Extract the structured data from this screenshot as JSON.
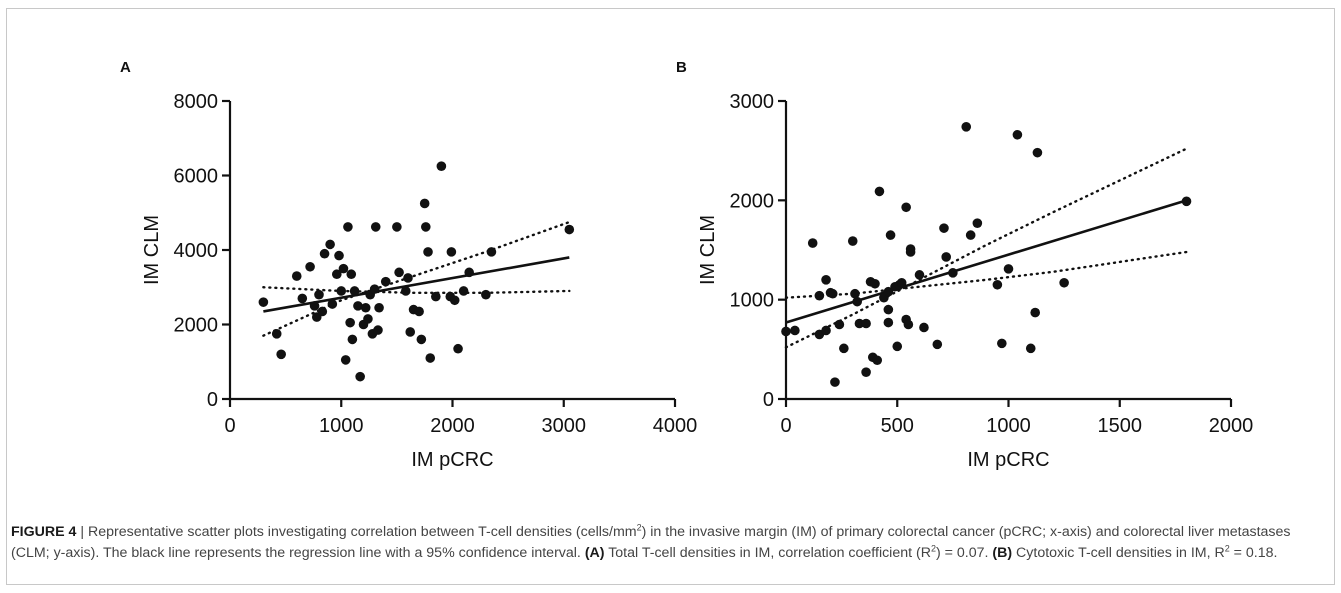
{
  "figure": {
    "caption": {
      "label": "FIGURE 4",
      "sep": " | ",
      "part1": "Representative scatter plots investigating correlation between T-cell densities (cells/mm",
      "sup1": "2",
      "part2": ") in the invasive margin (IM) of primary colorectal cancer (pCRC; x-axis) and colorectal liver metastases (CLM; y-axis). The black line represents the regression line with a 95% confidence interval. ",
      "ref_a": "(A)",
      "part3": " Total T-cell densities in IM, correlation coefficient (R",
      "sup2": "2",
      "part4": ") = 0.07. ",
      "ref_b": "(B)",
      "part5": " Cytotoxic T-cell densities in IM, R",
      "sup3": "2",
      "part6": " = 0.18."
    }
  },
  "chart_data": [
    {
      "type": "scatter",
      "panel_label": "A",
      "xlabel": "IM pCRC",
      "ylabel": "IM CLM",
      "xlim": [
        0,
        4000
      ],
      "ylim": [
        0,
        8000
      ],
      "xticks": [
        0,
        1000,
        2000,
        3000,
        4000
      ],
      "yticks": [
        0,
        2000,
        4000,
        6000,
        8000
      ],
      "grid": false,
      "regression": {
        "x": [
          300,
          3050
        ],
        "y": [
          2350,
          3800
        ]
      },
      "ci_upper": {
        "x": [
          300,
          1000,
          1650,
          2300,
          3050
        ],
        "y": [
          1700,
          2650,
          3300,
          3950,
          4750
        ]
      },
      "ci_lower": {
        "x": [
          300,
          1000,
          1650,
          2300,
          3050
        ],
        "y": [
          3000,
          2900,
          2850,
          2850,
          2900
        ]
      },
      "points": [
        [
          300,
          2600
        ],
        [
          420,
          1750
        ],
        [
          460,
          1200
        ],
        [
          600,
          3300
        ],
        [
          650,
          2700
        ],
        [
          720,
          3550
        ],
        [
          760,
          2500
        ],
        [
          780,
          2200
        ],
        [
          800,
          2800
        ],
        [
          830,
          2350
        ],
        [
          850,
          3900
        ],
        [
          900,
          4150
        ],
        [
          920,
          2550
        ],
        [
          960,
          3350
        ],
        [
          980,
          3850
        ],
        [
          1000,
          2900
        ],
        [
          1020,
          3500
        ],
        [
          1040,
          1050
        ],
        [
          1060,
          4620
        ],
        [
          1080,
          2050
        ],
        [
          1090,
          3350
        ],
        [
          1100,
          1600
        ],
        [
          1120,
          2900
        ],
        [
          1150,
          2500
        ],
        [
          1170,
          600
        ],
        [
          1200,
          2000
        ],
        [
          1220,
          2450
        ],
        [
          1240,
          2150
        ],
        [
          1260,
          2800
        ],
        [
          1280,
          1750
        ],
        [
          1300,
          2950
        ],
        [
          1310,
          4620
        ],
        [
          1330,
          1850
        ],
        [
          1340,
          2450
        ],
        [
          1400,
          3150
        ],
        [
          1500,
          4620
        ],
        [
          1520,
          3400
        ],
        [
          1580,
          2900
        ],
        [
          1600,
          3250
        ],
        [
          1620,
          1800
        ],
        [
          1650,
          2400
        ],
        [
          1700,
          2350
        ],
        [
          1720,
          1600
        ],
        [
          1750,
          5250
        ],
        [
          1760,
          4620
        ],
        [
          1780,
          3950
        ],
        [
          1800,
          1100
        ],
        [
          1850,
          2750
        ],
        [
          1900,
          6250
        ],
        [
          1980,
          2750
        ],
        [
          1990,
          3950
        ],
        [
          2020,
          2650
        ],
        [
          2050,
          1350
        ],
        [
          2100,
          2900
        ],
        [
          2150,
          3400
        ],
        [
          2300,
          2800
        ],
        [
          2350,
          3950
        ],
        [
          3050,
          4550
        ]
      ]
    },
    {
      "type": "scatter",
      "panel_label": "B",
      "xlabel": "IM pCRC",
      "ylabel": "IM CLM",
      "xlim": [
        0,
        2000
      ],
      "ylim": [
        0,
        3000
      ],
      "xticks": [
        0,
        500,
        1000,
        1500,
        2000
      ],
      "yticks": [
        0,
        1000,
        2000,
        3000
      ],
      "grid": false,
      "regression": {
        "x": [
          0,
          1800
        ],
        "y": [
          770,
          2000
        ]
      },
      "ci_upper": {
        "x": [
          0,
          300,
          600,
          900,
          1200,
          1500,
          1800
        ],
        "y": [
          520,
          850,
          1200,
          1550,
          1880,
          2200,
          2520
        ]
      },
      "ci_lower": {
        "x": [
          0,
          300,
          600,
          900,
          1200,
          1500,
          1800
        ],
        "y": [
          1020,
          1060,
          1130,
          1200,
          1280,
          1380,
          1480
        ]
      },
      "points": [
        [
          0,
          680
        ],
        [
          40,
          690
        ],
        [
          120,
          1570
        ],
        [
          150,
          1040
        ],
        [
          150,
          650
        ],
        [
          180,
          690
        ],
        [
          180,
          1200
        ],
        [
          200,
          1070
        ],
        [
          210,
          1060
        ],
        [
          220,
          170
        ],
        [
          240,
          750
        ],
        [
          260,
          510
        ],
        [
          300,
          1590
        ],
        [
          310,
          1060
        ],
        [
          320,
          980
        ],
        [
          330,
          760
        ],
        [
          360,
          760
        ],
        [
          360,
          270
        ],
        [
          380,
          1180
        ],
        [
          390,
          420
        ],
        [
          400,
          1160
        ],
        [
          410,
          390
        ],
        [
          420,
          2090
        ],
        [
          440,
          1020
        ],
        [
          460,
          900
        ],
        [
          460,
          1080
        ],
        [
          460,
          770
        ],
        [
          470,
          1650
        ],
        [
          490,
          1130
        ],
        [
          500,
          530
        ],
        [
          510,
          1150
        ],
        [
          520,
          1170
        ],
        [
          540,
          800
        ],
        [
          540,
          1930
        ],
        [
          550,
          750
        ],
        [
          560,
          1510
        ],
        [
          560,
          1480
        ],
        [
          600,
          1250
        ],
        [
          620,
          720
        ],
        [
          680,
          550
        ],
        [
          710,
          1720
        ],
        [
          720,
          1430
        ],
        [
          750,
          1270
        ],
        [
          810,
          2740
        ],
        [
          830,
          1650
        ],
        [
          860,
          1770
        ],
        [
          950,
          1150
        ],
        [
          970,
          560
        ],
        [
          1000,
          1310
        ],
        [
          1040,
          2660
        ],
        [
          1100,
          510
        ],
        [
          1120,
          870
        ],
        [
          1130,
          2480
        ],
        [
          1250,
          1170
        ],
        [
          1800,
          1990
        ]
      ]
    }
  ]
}
